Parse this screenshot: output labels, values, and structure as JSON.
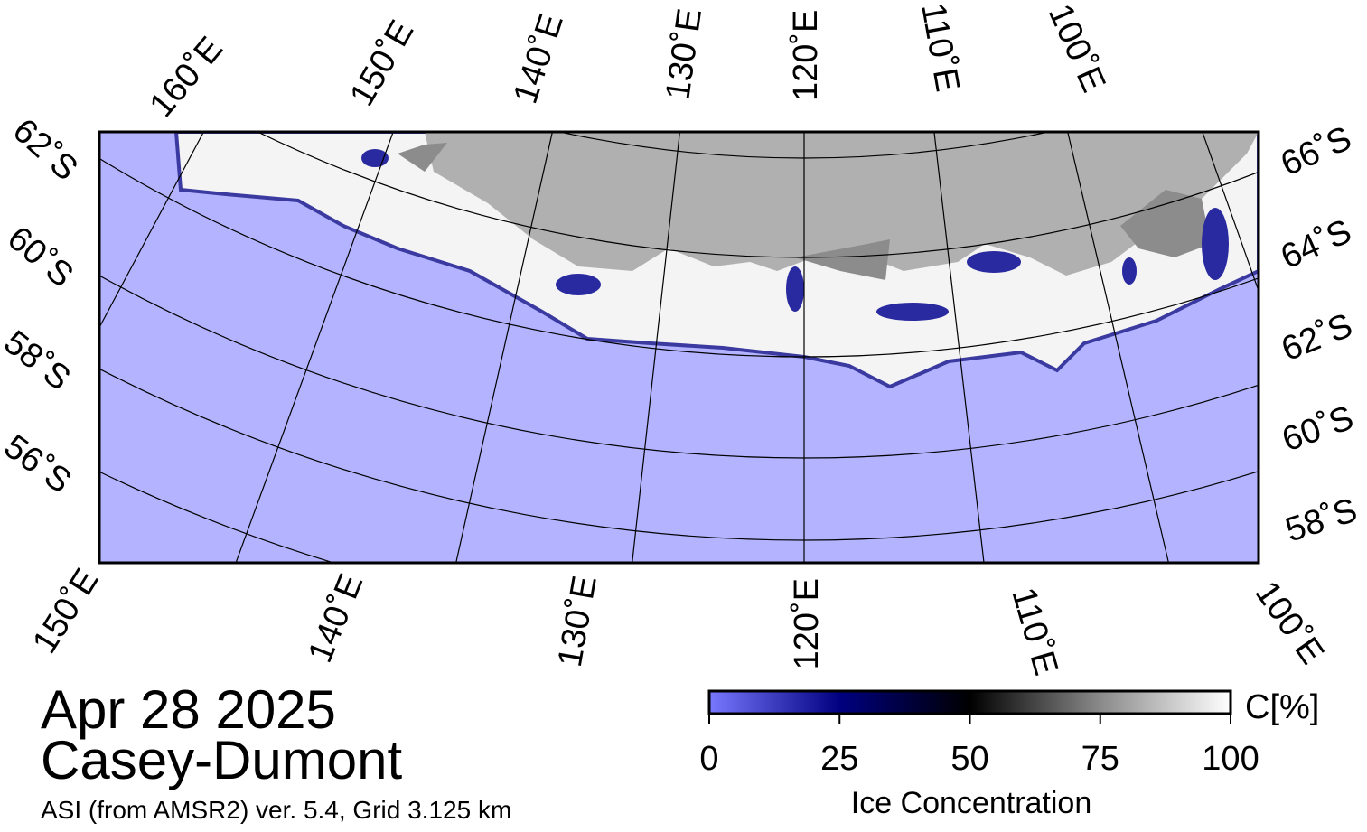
{
  "map": {
    "top_labels": [
      "160˚E",
      "150˚E",
      "140˚E",
      "130˚E",
      "120˚E",
      "110˚E",
      "100˚E"
    ],
    "bottom_labels": [
      "150˚E",
      "140˚E",
      "130˚E",
      "120˚E",
      "110˚E",
      "100˚E"
    ],
    "left_labels": [
      "62˚S",
      "60˚S",
      "58˚S",
      "56˚S"
    ],
    "right_labels": [
      "66˚S",
      "64˚S",
      "62˚S",
      "60˚S",
      "58˚S"
    ]
  },
  "date": "Apr 28 2025",
  "region": "Casey-Dumont",
  "source": "ASI (from AMSR2) ver. 5.4,  Grid 3.125 km",
  "colorbar": {
    "label": "Ice Concentration",
    "unit": "C[%]",
    "lim": [
      0,
      100
    ],
    "ticks": [
      0,
      25,
      50,
      75,
      100
    ]
  }
}
